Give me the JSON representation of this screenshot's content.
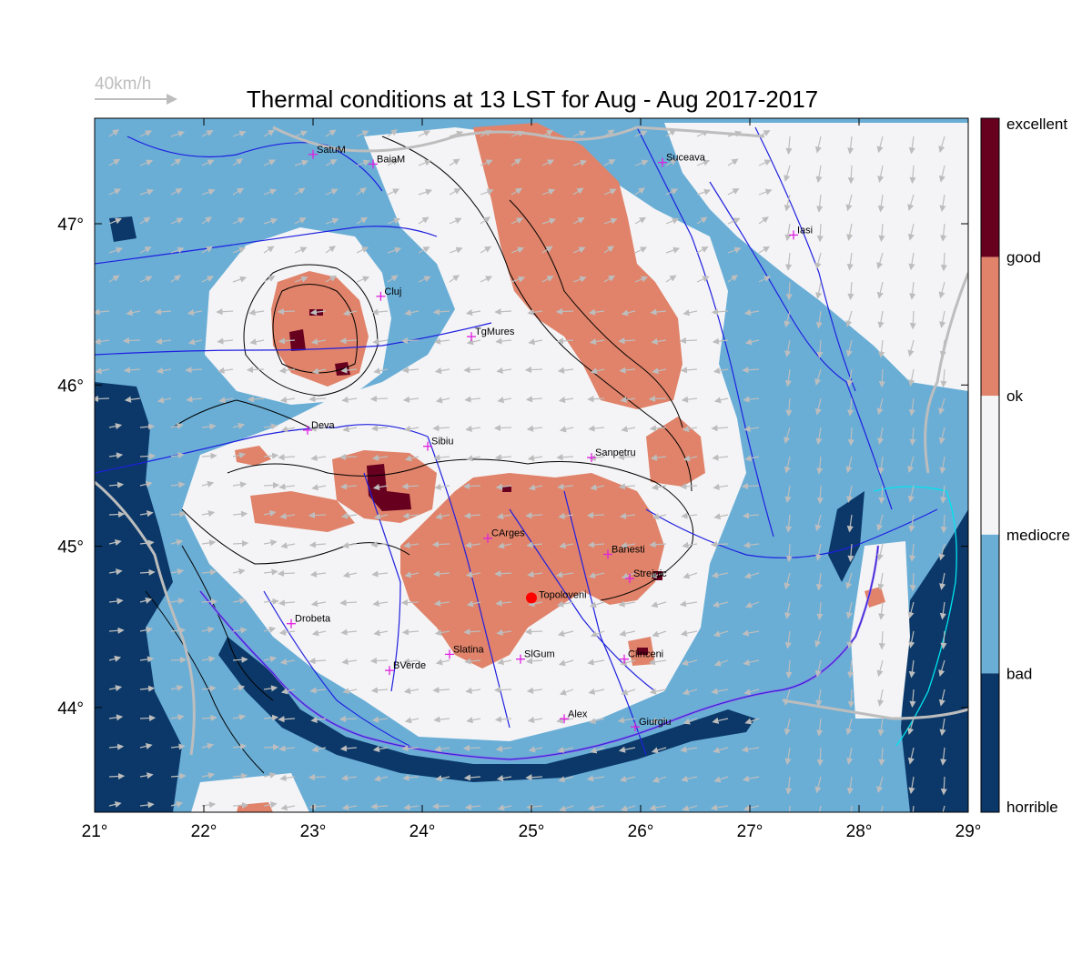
{
  "title": "Thermal conditions at 13 LST for Aug - Aug  2017-2017",
  "wind_reference": "40km/h",
  "x_ticks": [
    "21°",
    "22°",
    "23°",
    "24°",
    "25°",
    "26°",
    "27°",
    "28°",
    "29°"
  ],
  "y_ticks": [
    "47°",
    "46°",
    "45°",
    "44°"
  ],
  "colorbar": {
    "labels": [
      "excellent",
      "good",
      "ok",
      "mediocre",
      "bad",
      "horrible"
    ],
    "colors": [
      "#67001f",
      "#e0836a",
      "#f4f4f6",
      "#6aaed6",
      "#0b3868"
    ]
  },
  "colors": {
    "horrible": "#0b3868",
    "bad": "#6aaed6",
    "mediocre": "#f4f4f6",
    "ok": "#e0836a",
    "good": "#67001f",
    "rivers": "#1f1fe0",
    "borders": "#bdbdbd",
    "coast": "#00e5ee",
    "city_marker": "#e020e0",
    "highlight": "#ff0000"
  },
  "cities": [
    {
      "name": "SatuM",
      "lon": 23.0,
      "lat": 47.43
    },
    {
      "name": "BaiaM",
      "lon": 23.55,
      "lat": 47.37
    },
    {
      "name": "Suceava",
      "lon": 26.2,
      "lat": 47.38
    },
    {
      "name": "Iasi",
      "lon": 27.4,
      "lat": 46.93
    },
    {
      "name": "Cluj",
      "lon": 23.62,
      "lat": 46.55
    },
    {
      "name": "TgMures",
      "lon": 24.45,
      "lat": 46.3
    },
    {
      "name": "Deva",
      "lon": 22.95,
      "lat": 45.72
    },
    {
      "name": "Sibiu",
      "lon": 24.05,
      "lat": 45.62
    },
    {
      "name": "Sanpetru",
      "lon": 25.55,
      "lat": 45.55
    },
    {
      "name": "CArges",
      "lon": 24.6,
      "lat": 45.05
    },
    {
      "name": "Banesti",
      "lon": 25.7,
      "lat": 44.95
    },
    {
      "name": "Strejnic",
      "lon": 25.9,
      "lat": 44.8
    },
    {
      "name": "Drobeta",
      "lon": 22.8,
      "lat": 44.52
    },
    {
      "name": "Slatina",
      "lon": 24.25,
      "lat": 44.33
    },
    {
      "name": "SlGum",
      "lon": 24.9,
      "lat": 44.3
    },
    {
      "name": "Clinceni",
      "lon": 25.85,
      "lat": 44.3
    },
    {
      "name": "BVerde",
      "lon": 23.7,
      "lat": 44.23
    },
    {
      "name": "Alex",
      "lon": 25.3,
      "lat": 43.93
    },
    {
      "name": "Giurgiu",
      "lon": 25.95,
      "lat": 43.88
    }
  ],
  "highlight_point": {
    "name": "Topoloveni",
    "lon": 25.0,
    "lat": 44.68
  }
}
